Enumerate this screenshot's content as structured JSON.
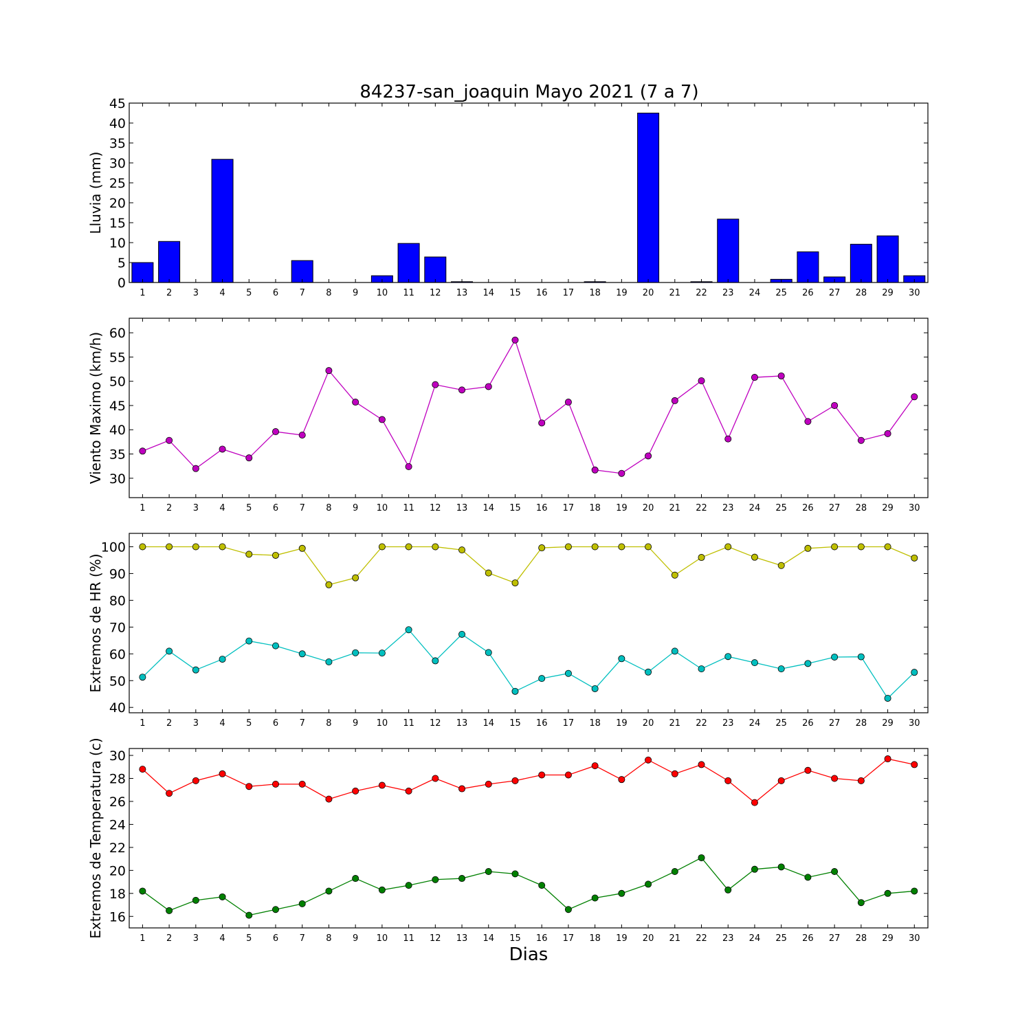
{
  "figure": {
    "title": "84237-san_joaquin Mayo 2021  (7 a 7)",
    "xlabel": "Dias"
  },
  "chart_data": [
    {
      "type": "bar",
      "ylabel": "Lluvia (mm)",
      "ylim": [
        0,
        45
      ],
      "yticks": [
        0,
        5,
        10,
        15,
        20,
        25,
        30,
        35,
        40,
        45
      ],
      "grid": false,
      "categories": [
        1,
        2,
        3,
        4,
        5,
        6,
        7,
        8,
        9,
        10,
        11,
        12,
        13,
        14,
        15,
        16,
        17,
        18,
        19,
        20,
        21,
        22,
        23,
        24,
        25,
        26,
        27,
        28,
        29,
        30
      ],
      "series": [
        {
          "color": "#0000ff",
          "values": [
            5.0,
            10.3,
            0,
            30.9,
            0,
            0,
            5.5,
            0,
            0,
            1.7,
            9.8,
            6.4,
            0.2,
            0,
            0,
            0,
            0,
            0.2,
            0,
            42.5,
            0,
            0.2,
            15.9,
            0,
            0.8,
            7.7,
            1.4,
            9.6,
            11.7,
            1.7
          ]
        }
      ]
    },
    {
      "type": "line",
      "ylabel": "Viento Maximo (km/h)",
      "ylim": [
        26,
        63
      ],
      "yticks": [
        30,
        35,
        40,
        45,
        50,
        55,
        60
      ],
      "grid": false,
      "x": [
        1,
        2,
        3,
        4,
        5,
        6,
        7,
        8,
        9,
        10,
        11,
        12,
        13,
        14,
        15,
        16,
        17,
        18,
        19,
        20,
        21,
        22,
        23,
        24,
        25,
        26,
        27,
        28,
        29,
        30
      ],
      "series": [
        {
          "color": "#bf00bf",
          "values": [
            35.6,
            37.8,
            32.0,
            36.0,
            34.2,
            39.6,
            38.9,
            52.2,
            45.7,
            42.1,
            32.4,
            49.3,
            48.2,
            48.9,
            58.5,
            41.4,
            45.7,
            31.7,
            31.0,
            34.6,
            46.0,
            50.1,
            38.1,
            50.8,
            51.1,
            41.7,
            45.0,
            37.8,
            39.2,
            46.8
          ]
        }
      ]
    },
    {
      "type": "line",
      "ylabel": "Extremos de HR (%)",
      "ylim": [
        38,
        105
      ],
      "yticks": [
        40,
        50,
        60,
        70,
        80,
        90,
        100
      ],
      "grid": false,
      "x": [
        1,
        2,
        3,
        4,
        5,
        6,
        7,
        8,
        9,
        10,
        11,
        12,
        13,
        14,
        15,
        16,
        17,
        18,
        19,
        20,
        21,
        22,
        23,
        24,
        25,
        26,
        27,
        28,
        29,
        30
      ],
      "series": [
        {
          "color": "#bfbf00",
          "values": [
            100,
            100,
            100,
            100,
            97.2,
            96.8,
            99.4,
            85.8,
            88.4,
            100,
            100,
            100,
            98.8,
            90.2,
            86.5,
            99.6,
            100,
            100,
            100,
            100,
            89.4,
            96.0,
            100,
            96.1,
            93.0,
            99.4,
            100,
            100,
            100,
            95.8
          ]
        },
        {
          "color": "#00bfbf",
          "values": [
            51.3,
            61.0,
            54.0,
            58.0,
            64.8,
            63.0,
            60.0,
            57.0,
            60.4,
            60.3,
            69.0,
            57.4,
            67.3,
            60.5,
            46.0,
            50.8,
            52.7,
            47.0,
            58.2,
            53.2,
            61.0,
            54.4,
            59.0,
            56.7,
            54.4,
            56.4,
            58.8,
            58.9,
            43.4,
            53.1
          ]
        }
      ]
    },
    {
      "type": "line",
      "ylabel": "Extremos de Temperatura (c)",
      "ylim": [
        15,
        30.6
      ],
      "yticks": [
        16,
        18,
        20,
        22,
        24,
        26,
        28,
        30
      ],
      "grid": false,
      "x": [
        1,
        2,
        3,
        4,
        5,
        6,
        7,
        8,
        9,
        10,
        11,
        12,
        13,
        14,
        15,
        16,
        17,
        18,
        19,
        20,
        21,
        22,
        23,
        24,
        25,
        26,
        27,
        28,
        29,
        30
      ],
      "series": [
        {
          "color": "#ff0000",
          "values": [
            28.8,
            26.7,
            27.8,
            28.4,
            27.3,
            27.5,
            27.5,
            26.2,
            26.9,
            27.4,
            26.9,
            28.0,
            27.1,
            27.5,
            27.8,
            28.3,
            28.3,
            29.1,
            27.9,
            29.6,
            28.4,
            29.2,
            27.8,
            25.9,
            27.8,
            28.7,
            28.0,
            27.8,
            29.7,
            29.2
          ]
        },
        {
          "color": "#008000",
          "values": [
            18.2,
            16.5,
            17.4,
            17.7,
            16.1,
            16.6,
            17.1,
            18.2,
            19.3,
            18.3,
            18.7,
            19.2,
            19.3,
            19.9,
            19.7,
            18.7,
            16.6,
            17.6,
            18.0,
            18.8,
            19.9,
            21.1,
            18.3,
            20.1,
            20.3,
            19.4,
            19.9,
            17.2,
            18.0,
            18.2
          ]
        }
      ]
    }
  ]
}
